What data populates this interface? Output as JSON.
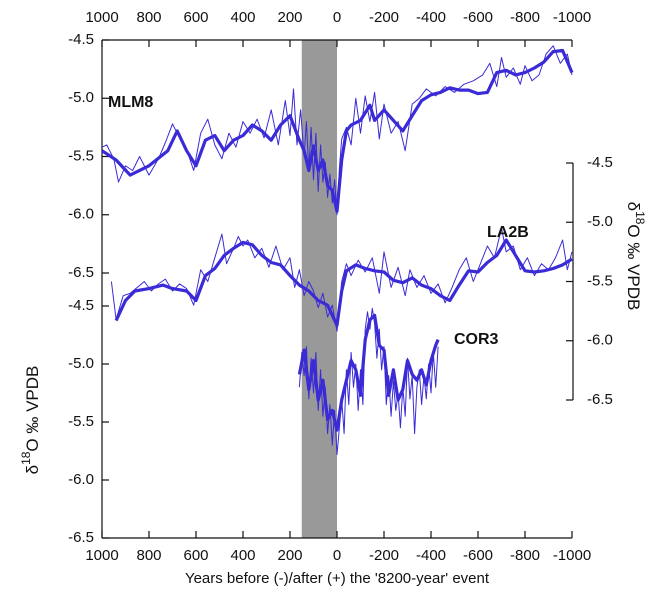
{
  "chart_data": {
    "type": "line",
    "xlim": [
      1000,
      -1000
    ],
    "xticks": [
      1000,
      800,
      600,
      400,
      200,
      0,
      -200,
      -400,
      -600,
      -800,
      -1000
    ],
    "xlabel": "Years before (-)/after (+) the '8200-year' event",
    "shade": {
      "xlim": [
        150,
        0
      ],
      "color": "#999999"
    },
    "panels": [
      {
        "label": "MLM8",
        "axis": "left",
        "color": "#3a2bd6",
        "ylim": [
          -6.5,
          -4.5
        ],
        "yticks": [
          -4.5,
          {
            "value": -5,
            "label": "-5.0"
          },
          -5.5,
          {
            "value": -6,
            "label": "-6.0"
          },
          -6.5
        ],
        "raw": {
          "x": [
            1000,
            980,
            950,
            930,
            900,
            870,
            840,
            800,
            760,
            730,
            700,
            670,
            640,
            610,
            580,
            550,
            520,
            490,
            460,
            430,
            400,
            370,
            340,
            310,
            280,
            250,
            220,
            200,
            185,
            170,
            155,
            140,
            130,
            120,
            110,
            100,
            90,
            80,
            70,
            60,
            50,
            40,
            30,
            20,
            10,
            0,
            -10,
            -20,
            -40,
            -60,
            -80,
            -100,
            -120,
            -140,
            -160,
            -180,
            -200,
            -230,
            -260,
            -290,
            -320,
            -350,
            -380,
            -420,
            -460,
            -500,
            -540,
            -580,
            -620,
            -650,
            -680,
            -700,
            -720,
            -750,
            -780,
            -800,
            -830,
            -860,
            -890,
            -920,
            -950,
            -980,
            -1000
          ],
          "values": [
            -5.42,
            -5.4,
            -5.52,
            -5.72,
            -5.58,
            -5.62,
            -5.5,
            -5.66,
            -5.52,
            -5.38,
            -5.22,
            -5.34,
            -5.44,
            -5.62,
            -5.3,
            -5.18,
            -5.4,
            -5.52,
            -5.3,
            -5.42,
            -5.2,
            -5.3,
            -5.18,
            -5.34,
            -5.1,
            -5.4,
            -5.02,
            -5.32,
            -4.92,
            -5.4,
            -5.1,
            -5.5,
            -5.2,
            -5.62,
            -5.25,
            -5.7,
            -5.3,
            -5.8,
            -5.4,
            -5.72,
            -5.55,
            -5.85,
            -5.65,
            -5.9,
            -5.7,
            -6.0,
            -5.6,
            -5.35,
            -5.25,
            -5.4,
            -5.0,
            -5.3,
            -4.98,
            -5.2,
            -4.95,
            -5.35,
            -5.05,
            -5.3,
            -5.2,
            -5.45,
            -5.05,
            -5.0,
            -4.92,
            -4.98,
            -4.9,
            -4.95,
            -4.88,
            -4.85,
            -4.8,
            -4.7,
            -4.9,
            -4.65,
            -4.82,
            -4.74,
            -4.88,
            -4.72,
            -4.85,
            -4.8,
            -4.62,
            -4.55,
            -4.7,
            -4.62,
            -4.8
          ]
        },
        "smooth": {
          "x": [
            1000,
            940,
            880,
            800,
            720,
            680,
            640,
            600,
            560,
            520,
            480,
            440,
            400,
            360,
            320,
            280,
            240,
            200,
            160,
            140,
            120,
            100,
            80,
            60,
            40,
            20,
            0,
            -20,
            -40,
            -60,
            -100,
            -140,
            -160,
            -200,
            -240,
            -280,
            -320,
            -360,
            -400,
            -440,
            -480,
            -520,
            -560,
            -600,
            -640,
            -680,
            -720,
            -760,
            -800,
            -840,
            -880,
            -920,
            -960,
            -1000
          ],
          "values": [
            -5.45,
            -5.53,
            -5.66,
            -5.58,
            -5.45,
            -5.28,
            -5.45,
            -5.58,
            -5.36,
            -5.32,
            -5.45,
            -5.36,
            -5.32,
            -5.23,
            -5.28,
            -5.36,
            -5.23,
            -5.15,
            -5.36,
            -5.45,
            -5.62,
            -5.41,
            -5.62,
            -5.53,
            -5.75,
            -5.79,
            -5.97,
            -5.53,
            -5.28,
            -5.23,
            -5.19,
            -5.06,
            -5.19,
            -5.1,
            -5.19,
            -5.28,
            -5.15,
            -5.02,
            -4.97,
            -4.95,
            -4.91,
            -4.93,
            -4.93,
            -4.96,
            -4.95,
            -4.78,
            -4.76,
            -4.8,
            -4.78,
            -4.74,
            -4.69,
            -4.6,
            -4.59,
            -4.78
          ]
        }
      },
      {
        "label": "LA2B",
        "axis": "right",
        "color": "#3a2bd6",
        "ylim": [
          -6.5,
          -4.5
        ],
        "yticks": [
          -4.5,
          {
            "value": -5,
            "label": "-5.0"
          },
          -5.5,
          {
            "value": -6,
            "label": "-6.0"
          },
          -6.5
        ],
        "ylabel": {
          "pre": "δ",
          "sup": "18",
          "post": "O ‰ VPDB"
        },
        "raw": {
          "x": [
            960,
            940,
            910,
            880,
            850,
            820,
            790,
            760,
            730,
            700,
            670,
            640,
            610,
            580,
            550,
            520,
            490,
            470,
            440,
            420,
            400,
            380,
            350,
            320,
            290,
            260,
            230,
            200,
            180,
            160,
            140,
            120,
            100,
            80,
            60,
            40,
            20,
            0,
            -20,
            -40,
            -60,
            -90,
            -120,
            -150,
            -180,
            -200,
            -230,
            -260,
            -290,
            -310,
            -340,
            -370,
            -400,
            -430,
            -460,
            -490,
            -520,
            -550,
            -580,
            -610,
            -640,
            -670,
            -700,
            -720,
            -750,
            -780,
            -810,
            -840,
            -870,
            -900,
            -930,
            -960,
            -980,
            -1000
          ],
          "values": [
            -5.5,
            -5.82,
            -5.62,
            -5.6,
            -5.55,
            -5.5,
            -5.58,
            -5.52,
            -5.48,
            -5.58,
            -5.52,
            -5.56,
            -5.7,
            -5.4,
            -5.5,
            -5.3,
            -5.1,
            -5.35,
            -5.22,
            -5.12,
            -5.2,
            -5.15,
            -5.3,
            -5.22,
            -5.38,
            -5.2,
            -5.4,
            -5.3,
            -5.55,
            -5.4,
            -5.62,
            -5.5,
            -5.58,
            -5.72,
            -5.6,
            -5.8,
            -5.7,
            -5.92,
            -5.5,
            -5.35,
            -5.45,
            -5.32,
            -5.42,
            -5.3,
            -5.6,
            -5.25,
            -5.55,
            -5.38,
            -5.62,
            -5.4,
            -5.55,
            -5.45,
            -5.6,
            -5.52,
            -5.68,
            -5.55,
            -5.4,
            -5.3,
            -5.5,
            -5.35,
            -5.2,
            -5.3,
            -5.05,
            -5.25,
            -5.2,
            -5.4,
            -5.3,
            -5.45,
            -5.35,
            -5.4,
            -5.3,
            -5.15,
            -5.4,
            -5.25
          ]
        },
        "smooth": {
          "x": [
            940,
            900,
            860,
            800,
            740,
            700,
            640,
            600,
            560,
            520,
            480,
            440,
            400,
            360,
            320,
            280,
            240,
            200,
            160,
            120,
            80,
            40,
            0,
            -20,
            -40,
            -80,
            -120,
            -160,
            -200,
            -240,
            -280,
            -320,
            -360,
            -400,
            -440,
            -480,
            -520,
            -560,
            -600,
            -640,
            -680,
            -720,
            -760,
            -800,
            -840,
            -880,
            -920,
            -960,
            -1000
          ],
          "values": [
            -5.83,
            -5.66,
            -5.58,
            -5.56,
            -5.53,
            -5.56,
            -5.58,
            -5.66,
            -5.45,
            -5.39,
            -5.28,
            -5.22,
            -5.17,
            -5.19,
            -5.28,
            -5.34,
            -5.36,
            -5.45,
            -5.53,
            -5.58,
            -5.66,
            -5.7,
            -5.87,
            -5.58,
            -5.41,
            -5.36,
            -5.39,
            -5.41,
            -5.42,
            -5.49,
            -5.51,
            -5.47,
            -5.53,
            -5.56,
            -5.62,
            -5.66,
            -5.53,
            -5.41,
            -5.42,
            -5.34,
            -5.28,
            -5.15,
            -5.28,
            -5.41,
            -5.42,
            -5.41,
            -5.39,
            -5.36,
            -5.31
          ]
        }
      },
      {
        "label": "COR3",
        "axis": "left",
        "color": "#3a2bd6",
        "ylim": [
          -6.5,
          -4.5
        ],
        "yticks": [
          -4.5,
          {
            "value": -5,
            "label": "-5.0"
          },
          -5.5,
          {
            "value": -6,
            "label": "-6.0"
          },
          -6.5
        ],
        "ylabel": {
          "pre": "δ",
          "sup": "18",
          "post": "O ‰ VPDB"
        },
        "raw": {
          "x": [
            160,
            150,
            140,
            130,
            120,
            110,
            100,
            90,
            80,
            70,
            60,
            50,
            40,
            30,
            20,
            10,
            0,
            -10,
            -20,
            -30,
            -40,
            -50,
            -60,
            -70,
            -80,
            -90,
            -100,
            -110,
            -120,
            -130,
            -140,
            -150,
            -160,
            -170,
            -180,
            -190,
            -200,
            -210,
            -220,
            -230,
            -240,
            -250,
            -260,
            -270,
            -280,
            -290,
            -300,
            -310,
            -320,
            -330,
            -340,
            -350,
            -360,
            -370,
            -380,
            -390,
            -400,
            -410,
            -420,
            -430
          ],
          "values": [
            -5.2,
            -4.9,
            -5.1,
            -4.85,
            -5.3,
            -4.95,
            -5.25,
            -4.9,
            -5.4,
            -5.05,
            -5.45,
            -5.2,
            -5.6,
            -5.35,
            -5.7,
            -5.4,
            -5.78,
            -5.55,
            -5.3,
            -5.6,
            -5.05,
            -5.35,
            -4.9,
            -5.2,
            -5.0,
            -5.4,
            -5.05,
            -5.35,
            -4.7,
            -4.55,
            -4.7,
            -4.52,
            -4.65,
            -4.95,
            -4.7,
            -5.05,
            -4.85,
            -5.35,
            -5.1,
            -5.45,
            -5.15,
            -5.4,
            -5.25,
            -5.55,
            -5.2,
            -5.45,
            -4.95,
            -5.3,
            -5.1,
            -5.6,
            -5.2,
            -5.05,
            -5.35,
            -5.1,
            -5.3,
            -5.0,
            -5.25,
            -4.9,
            -5.2,
            -4.85
          ]
        },
        "smooth": {
          "x": [
            160,
            140,
            120,
            100,
            80,
            60,
            40,
            20,
            0,
            -20,
            -40,
            -60,
            -80,
            -100,
            -120,
            -140,
            -160,
            -180,
            -200,
            -220,
            -240,
            -260,
            -280,
            -300,
            -320,
            -340,
            -360,
            -380,
            -400,
            -420,
            -430
          ],
          "values": [
            -5.09,
            -4.88,
            -5.22,
            -4.97,
            -5.31,
            -5.14,
            -5.48,
            -5.4,
            -5.57,
            -5.31,
            -5.14,
            -4.97,
            -5.05,
            -5.27,
            -4.79,
            -4.62,
            -4.58,
            -4.84,
            -4.88,
            -5.27,
            -5.05,
            -5.31,
            -5.22,
            -4.97,
            -5.09,
            -5.14,
            -5.05,
            -5.18,
            -4.97,
            -4.84,
            -4.79
          ]
        }
      }
    ]
  }
}
